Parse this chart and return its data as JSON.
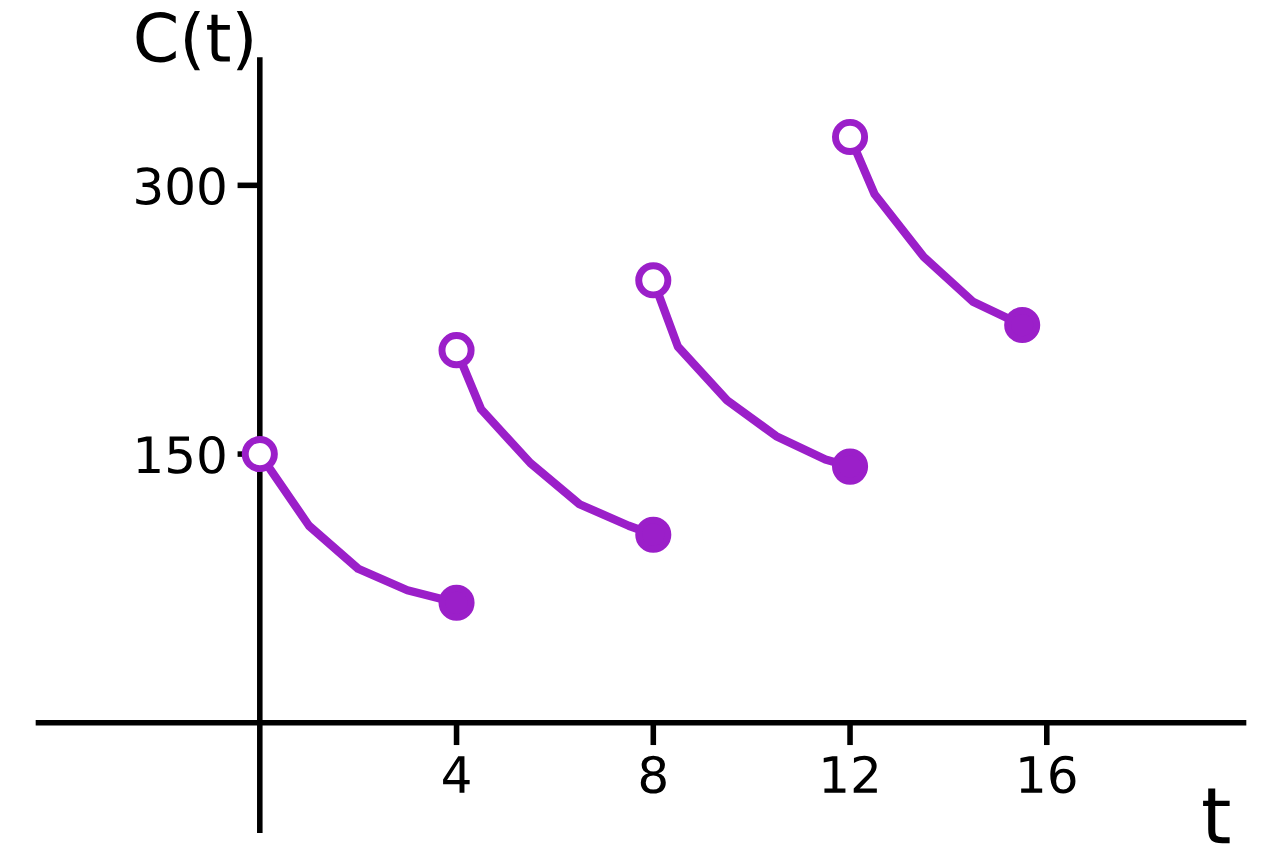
{
  "chart_data": {
    "type": "line",
    "xlabel": "t",
    "ylabel": "C(t)",
    "xlim": [
      -4.5,
      20
    ],
    "ylim": [
      -60,
      370
    ],
    "xticks": [
      4,
      8,
      12,
      16
    ],
    "yticks": [
      150,
      300
    ],
    "grid": false,
    "legend": false,
    "marker": "none",
    "line_style": "solid",
    "series": [
      {
        "color": "#9b1fc9",
        "x": [
          0,
          1,
          2,
          3,
          4
        ],
        "values": [
          150,
          110,
          86,
          74,
          67
        ]
      },
      {
        "color": "#9b1fc9",
        "x": [
          4,
          4.5,
          5.5,
          6.5,
          7.5,
          8
        ],
        "values": [
          208,
          175,
          145,
          122,
          110,
          105
        ]
      },
      {
        "color": "#9b1fc9",
        "x": [
          8,
          8.5,
          9.5,
          10.5,
          11.5,
          12
        ],
        "values": [
          247,
          210,
          180,
          160,
          147,
          143
        ]
      },
      {
        "color": "#9b1fc9",
        "x": [
          12,
          12.5,
          13.5,
          14.5,
          15.5
        ],
        "values": [
          327,
          295,
          260,
          235,
          222
        ]
      },
      {
        "type": "scatter",
        "marker": "circle",
        "color": "#9b1fc9",
        "colors": [
          "#ffffff",
          "#ffffff",
          "#ffffff",
          "#ffffff"
        ],
        "x": [
          0,
          4,
          8,
          12
        ],
        "values": [
          150,
          208,
          247,
          327
        ]
      },
      {
        "type": "scatter",
        "marker": "circle",
        "color": "#9b1fc9",
        "x": [
          4,
          8,
          12,
          15.5
        ],
        "values": [
          67,
          105,
          143,
          222
        ]
      }
    ]
  }
}
